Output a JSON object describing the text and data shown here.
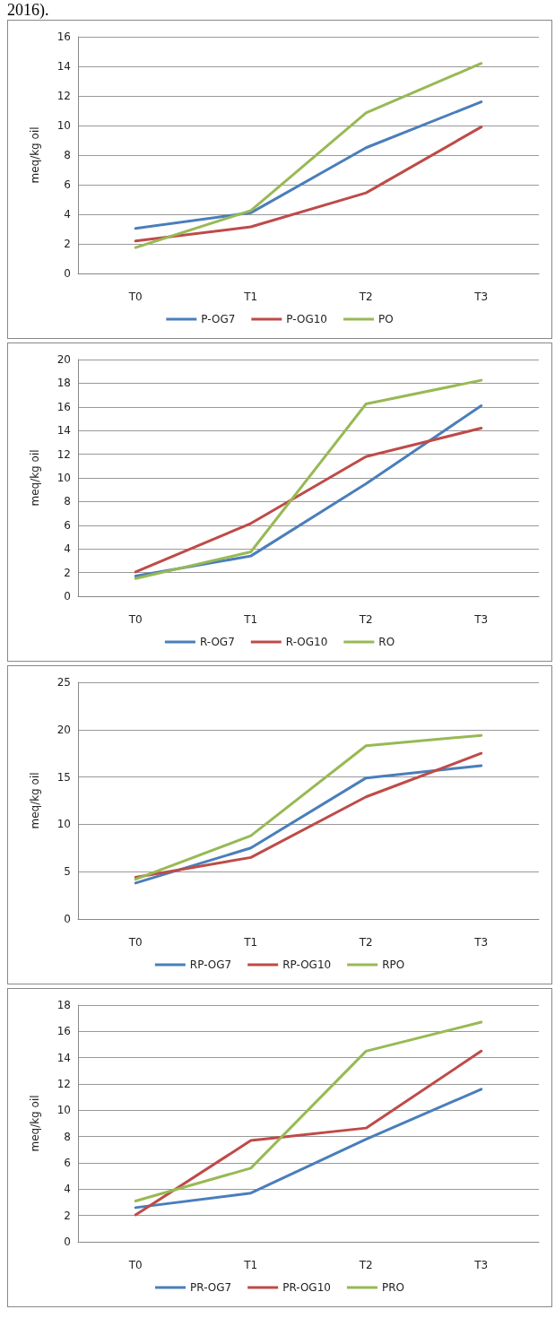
{
  "chart_data": [
    {
      "type": "line",
      "ylabel": "meq/kg oil",
      "annotations": [
        "2016)."
      ],
      "categories": [
        "T0",
        "T1",
        "T2",
        "T3"
      ],
      "ylim": [
        0,
        16
      ],
      "yticks": [
        0,
        2,
        4,
        6,
        8,
        10,
        12,
        14,
        16
      ],
      "grid": "y",
      "legend": "bottom",
      "marker": "none",
      "line_style": "solid",
      "series": [
        {
          "name": "P-OG7",
          "color": "#4a7ebb",
          "values": [
            3.05,
            4.1,
            8.5,
            11.6
          ]
        },
        {
          "name": "P-OG10",
          "color": "#be4b48",
          "values": [
            2.2,
            3.15,
            5.45,
            9.9
          ]
        },
        {
          "name": "PO",
          "color": "#98b954",
          "values": [
            1.75,
            4.25,
            10.85,
            14.2
          ]
        }
      ]
    },
    {
      "type": "line",
      "ylabel": "meq/kg oil",
      "categories": [
        "T0",
        "T1",
        "T2",
        "T3"
      ],
      "ylim": [
        0,
        20
      ],
      "yticks": [
        0,
        2,
        4,
        6,
        8,
        10,
        12,
        14,
        16,
        18,
        20
      ],
      "grid": "y",
      "legend": "bottom",
      "marker": "none",
      "line_style": "solid",
      "series": [
        {
          "name": "R-OG7",
          "color": "#4a7ebb",
          "values": [
            1.7,
            3.4,
            9.5,
            16.1
          ]
        },
        {
          "name": "R-OG10",
          "color": "#be4b48",
          "values": [
            2.05,
            6.15,
            11.8,
            14.2
          ]
        },
        {
          "name": "RO",
          "color": "#98b954",
          "values": [
            1.5,
            3.75,
            16.25,
            18.25
          ]
        }
      ]
    },
    {
      "type": "line",
      "ylabel": "meq/kg oil",
      "categories": [
        "T0",
        "T1",
        "T2",
        "T3"
      ],
      "ylim": [
        0,
        25
      ],
      "yticks": [
        0,
        5,
        10,
        15,
        20,
        25
      ],
      "grid": "y",
      "legend": "bottom",
      "marker": "none",
      "line_style": "solid",
      "series": [
        {
          "name": "RP-OG7",
          "color": "#4a7ebb",
          "values": [
            3.8,
            7.5,
            14.9,
            16.2
          ]
        },
        {
          "name": "RP-OG10",
          "color": "#be4b48",
          "values": [
            4.4,
            6.5,
            12.9,
            17.5
          ]
        },
        {
          "name": "RPO",
          "color": "#98b954",
          "values": [
            4.2,
            8.8,
            18.3,
            19.4
          ]
        }
      ]
    },
    {
      "type": "line",
      "ylabel": "meq/kg oil",
      "categories": [
        "T0",
        "T1",
        "T2",
        "T3"
      ],
      "ylim": [
        0,
        18
      ],
      "yticks": [
        0,
        2,
        4,
        6,
        8,
        10,
        12,
        14,
        16,
        18
      ],
      "grid": "y",
      "legend": "bottom",
      "marker": "none",
      "line_style": "solid",
      "series": [
        {
          "name": "PR-OG7",
          "color": "#4a7ebb",
          "values": [
            2.6,
            3.7,
            7.8,
            11.6
          ]
        },
        {
          "name": "PR-OG10",
          "color": "#be4b48",
          "values": [
            2.05,
            7.7,
            8.65,
            14.5
          ]
        },
        {
          "name": "PRO",
          "color": "#98b954",
          "values": [
            3.1,
            5.6,
            14.5,
            16.7
          ]
        }
      ]
    }
  ]
}
